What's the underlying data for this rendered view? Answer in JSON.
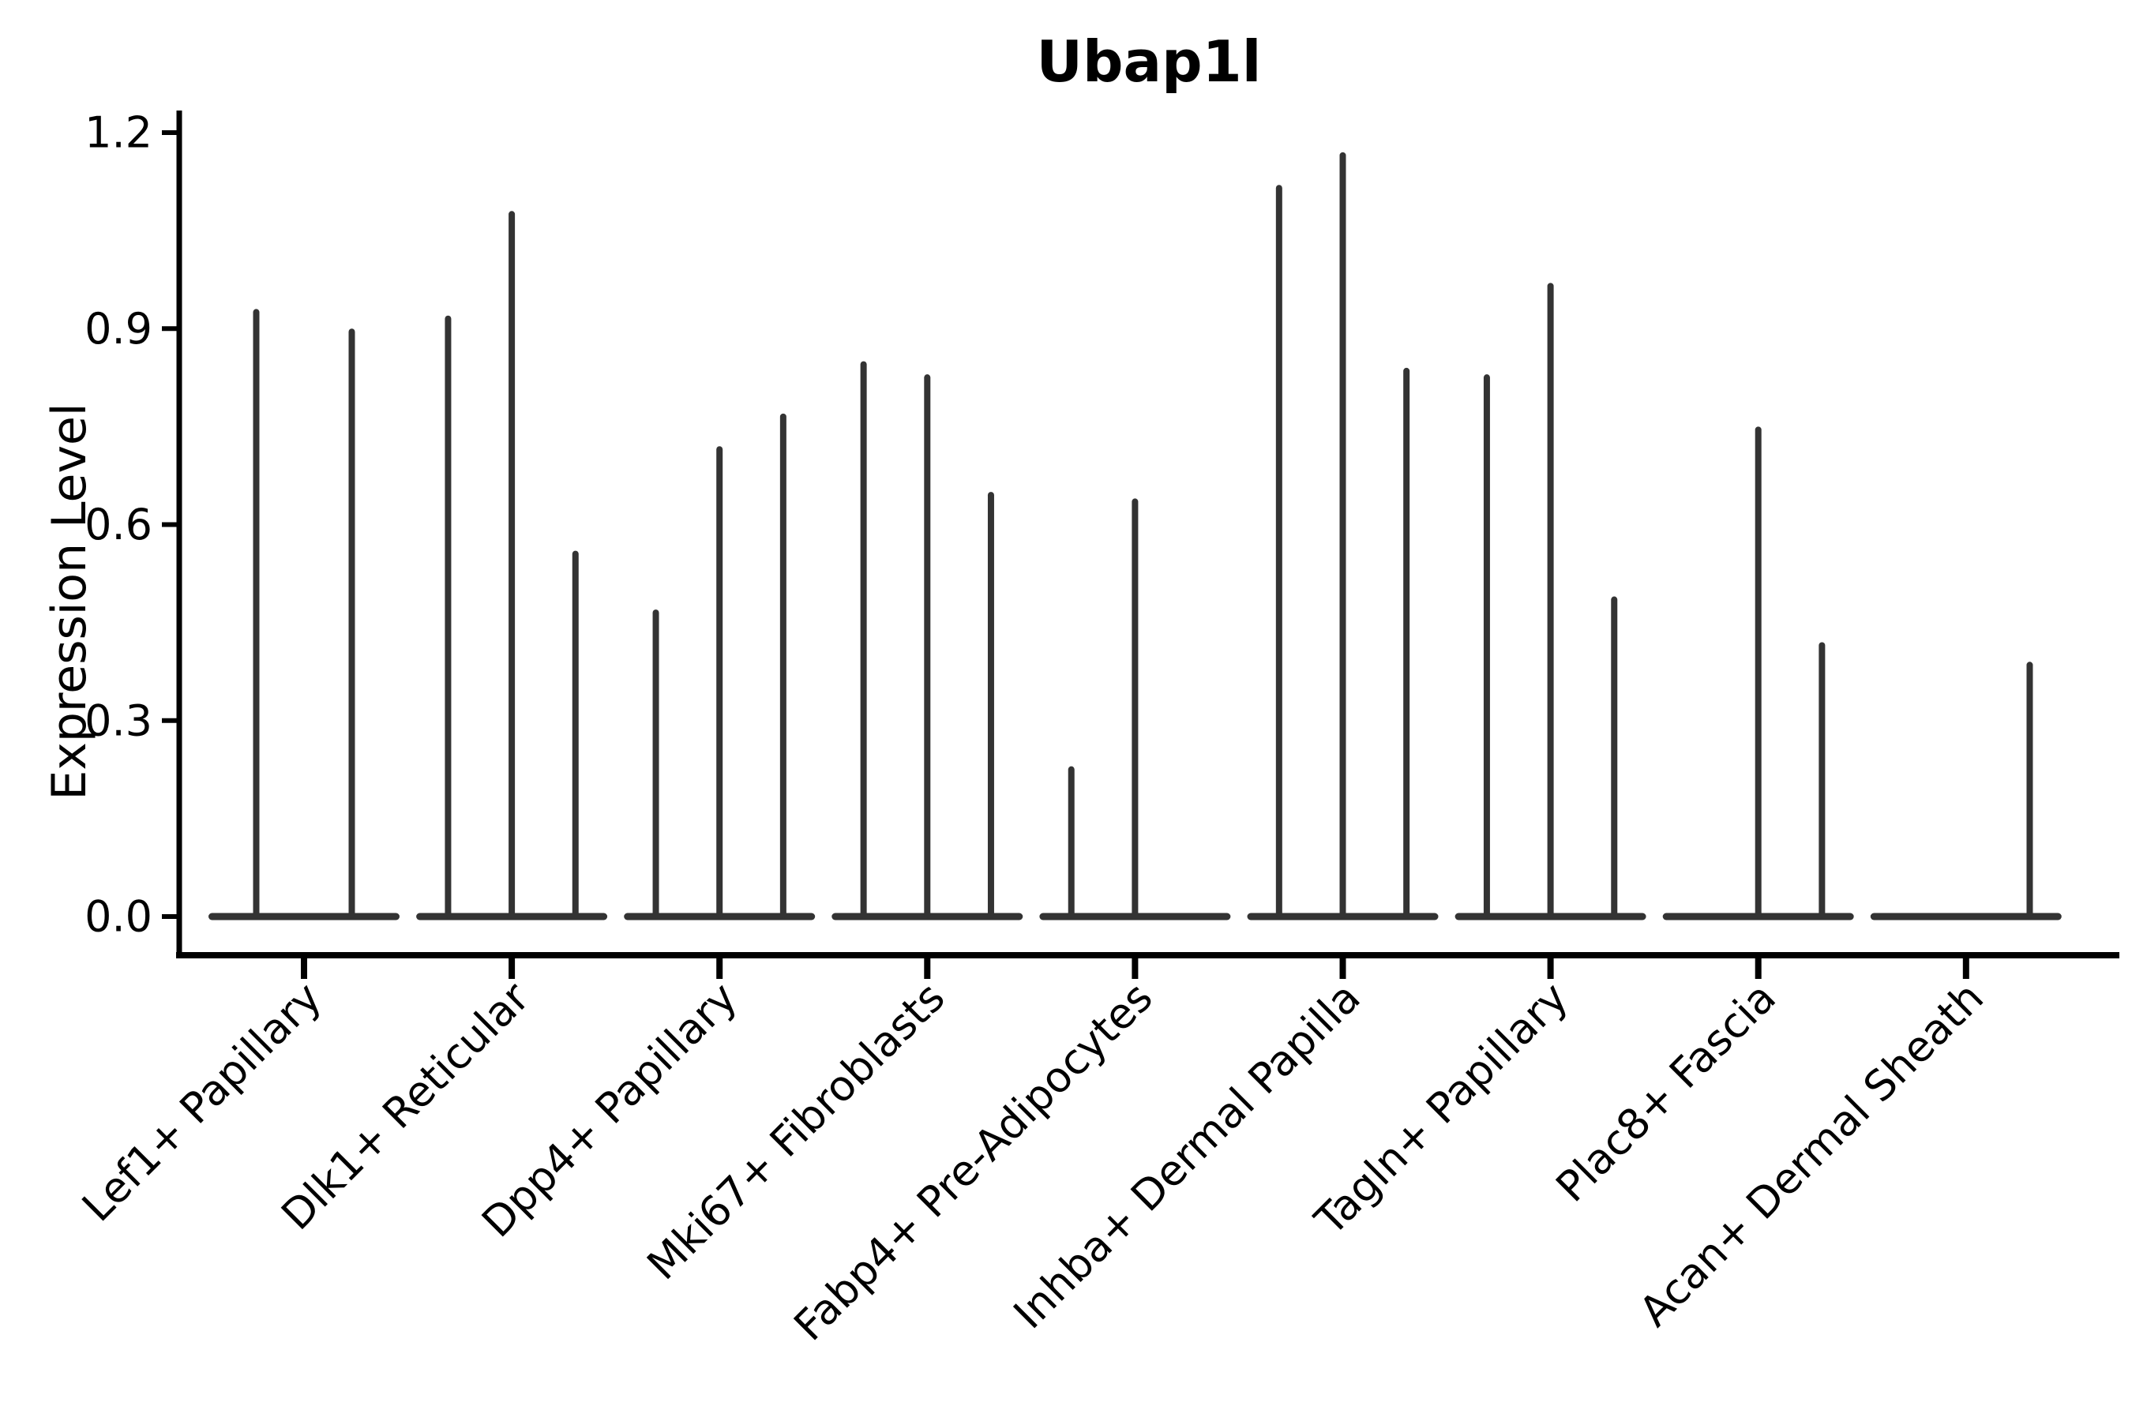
{
  "title": "Ubap1l",
  "axes": {
    "ylabel": "Expression Level",
    "ytick_labels": [
      "0.0",
      "0.3",
      "0.6",
      "0.9",
      "1.2"
    ]
  },
  "chart_data": {
    "type": "violin",
    "title": "Ubap1l",
    "xlabel": "",
    "ylabel": "Expression Level",
    "ylim": [
      0,
      1.23
    ],
    "yticks": [
      0.0,
      0.3,
      0.6,
      0.9,
      1.2
    ],
    "grid": false,
    "legend": "none",
    "description": "Needle-shaped violin plot of gene expression; each cell-type category holds 2-3 narrow violins (flat base at 0 with a thin spike up to the max expression). Value 0 means an all-zero flat violin with no spike.",
    "categories": [
      "Lef1+ Papillary",
      "Dlk1+ Reticular",
      "Dpp4+ Papillary",
      "Mki67+ Fibroblasts",
      "Fabp4+ Pre-Adipocytes",
      "Inhba+ Dermal Papilla",
      "Tagln+ Papillary",
      "Plac8+ Fascia",
      "Acan+ Dermal Sheath"
    ],
    "series": [
      {
        "category": "Lef1+ Papillary",
        "violin_max_values": [
          0.93,
          0.9
        ]
      },
      {
        "category": "Dlk1+ Reticular",
        "violin_max_values": [
          0.92,
          1.08,
          0.56
        ]
      },
      {
        "category": "Dpp4+ Papillary",
        "violin_max_values": [
          0.47,
          0.72,
          0.77
        ]
      },
      {
        "category": "Mki67+ Fibroblasts",
        "violin_max_values": [
          0.85,
          0.83,
          0.65
        ]
      },
      {
        "category": "Fabp4+ Pre-Adipocytes",
        "violin_max_values": [
          0.23,
          0.64,
          0
        ]
      },
      {
        "category": "Inhba+ Dermal Papilla",
        "violin_max_values": [
          1.12,
          1.17,
          0.84
        ]
      },
      {
        "category": "Tagln+ Papillary",
        "violin_max_values": [
          0.83,
          0.97,
          0.49
        ]
      },
      {
        "category": "Plac8+ Fascia",
        "violin_max_values": [
          0,
          0.75,
          0.42
        ]
      },
      {
        "category": "Acan+ Dermal Sheath",
        "violin_max_values": [
          0,
          0,
          0.39
        ]
      }
    ],
    "style": {
      "violin_color": "#333333",
      "axis_color": "#000000",
      "text_color": "#000000",
      "background": "#ffffff"
    }
  }
}
